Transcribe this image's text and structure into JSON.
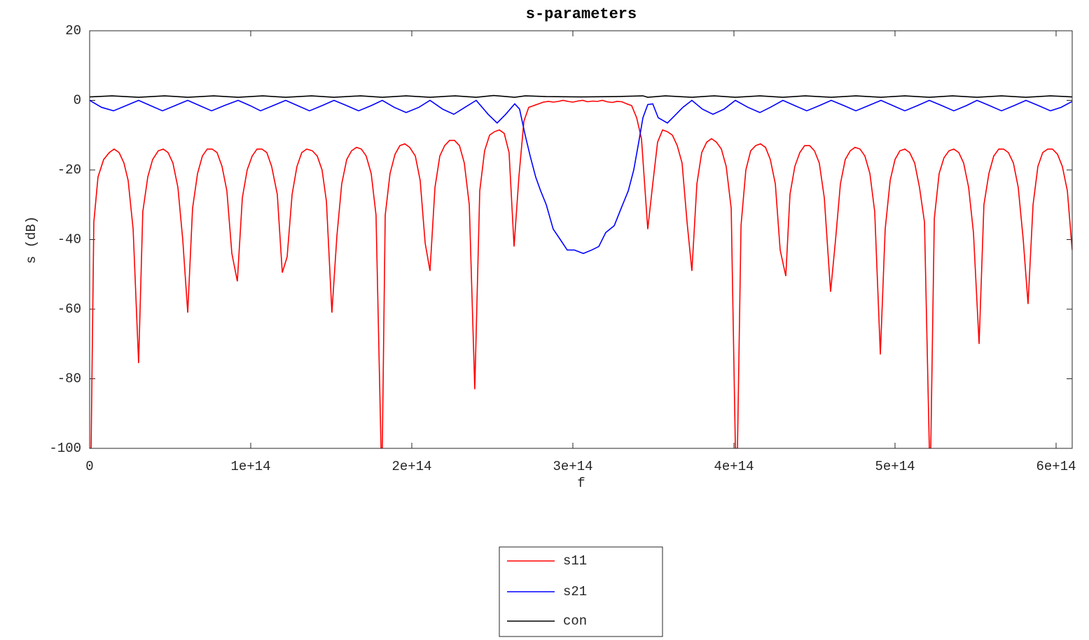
{
  "chart_data": {
    "type": "line",
    "title": "s-parameters",
    "x_label": "f",
    "y_label": "s  (dB)",
    "xlim": [
      0,
      610000000000000.0
    ],
    "ylim": [
      -100,
      20
    ],
    "xticks": [
      0,
      {
        "value": 100000000000000.0,
        "label": "1e+14"
      },
      {
        "value": 200000000000000.0,
        "label": "2e+14"
      },
      {
        "value": 300000000000000.0,
        "label": "3e+14"
      },
      {
        "value": 400000000000000.0,
        "label": "4e+14"
      },
      {
        "value": 500000000000000.0,
        "label": "5e+14"
      },
      {
        "value": 600000000000000.0,
        "label": "6e+14"
      }
    ],
    "yticks": [
      20,
      0,
      -20,
      -40,
      -60,
      -80,
      -100
    ],
    "grid": false,
    "legend": "bottom",
    "series": [
      {
        "name": "s11",
        "color": "#ff0000",
        "x": [
          0,
          900000000000.0,
          2600000000000.0,
          5200000000000.0,
          8700000000000.0,
          12200000000000.0,
          15200000000000.0,
          18300000000000.0,
          21300000000000.0,
          23900000000000.0,
          27000000000000.0,
          30400000000000.0,
          33000000000000.0,
          36100000000000.0,
          39100000000000.0,
          42600000000000.0,
          45700000000000.0,
          48700000000000.0,
          51700000000000.0,
          54800000000000.0,
          57800000000000.0,
          60900000000000.0,
          63900000000000.0,
          67000000000000.0,
          70000000000000.0,
          73000000000000.0,
          76100000000000.0,
          79100000000000.0,
          82200000000000.0,
          85200000000000.0,
          88300000000000.0,
          91700000000000.0,
          94800000000000.0,
          97800000000000.0,
          100900000000000.0,
          103900000000000.0,
          107000000000000.0,
          110000000000000.0,
          113000000000000.0,
          116500000000000.0,
          119600000000000.0,
          122600000000000.0,
          125700000000000.0,
          128700000000000.0,
          131700000000000.0,
          134800000000000.0,
          138300000000000.0,
          141300000000000.0,
          144300000000000.0,
          147000000000000.0,
          150400000000000.0,
          153500000000000.0,
          156500000000000.0,
          159600000000000.0,
          162600000000000.0,
          165700000000000.0,
          168700000000000.0,
          171700000000000.0,
          174800000000000.0,
          177800000000000.0,
          180900000000000.0,
          181700000000000.0,
          183500000000000.0,
          186500000000000.0,
          189600000000000.0,
          192600000000000.0,
          195700000000000.0,
          198700000000000.0,
          202200000000000.0,
          205200000000000.0,
          208300000000000.0,
          211300000000000.0,
          214400000000000.0,
          217400000000000.0,
          220400000000000.0,
          223500000000000.0,
          226500000000000.0,
          229600000000000.0,
          232600000000000.0,
          235700000000000.0,
          239100000000000.0,
          242200000000000.0,
          245200000000000.0,
          248300000000000.0,
          251300000000000.0,
          254400000000000.0,
          257400000000000.0,
          260400000000000.0,
          263500000000000.0,
          266500000000000.0,
          269600000000000.0,
          272600000000000.0,
          275700000000000.0,
          278700000000000.0,
          281700000000000.0,
          284800000000000.0,
          287800000000000.0,
          290900000000000.0,
          293900000000000.0,
          297000000000000.0,
          300000000000000.0,
          303000000000000.0,
          306100000000000.0,
          309100000000000.0,
          312200000000000.0,
          315200000000000.0,
          318300000000000.0,
          321300000000000.0,
          324400000000000.0,
          327400000000000.0,
          330400000000000.0,
          333500000000000.0,
          336500000000000.0,
          339600000000000.0,
          342600000000000.0,
          346500000000000.0,
          349600000000000.0,
          352600000000000.0,
          355700000000000.0,
          358700000000000.0,
          361800000000000.0,
          364800000000000.0,
          367800000000000.0,
          370900000000000.0,
          373900000000000.0,
          377000000000000.0,
          380000000000000.0,
          383100000000000.0,
          386100000000000.0,
          389100000000000.0,
          392200000000000.0,
          395200000000000.0,
          398300000000000.0,
          400900000000000.0,
          402200000000000.0,
          404400000000000.0,
          407400000000000.0,
          410400000000000.0,
          413500000000000.0,
          416500000000000.0,
          419600000000000.0,
          422600000000000.0,
          425700000000000.0,
          428700000000000.0,
          432200000000000.0,
          434800000000000.0,
          437800000000000.0,
          440900000000000.0,
          443900000000000.0,
          447000000000000.0,
          450000000000000.0,
          453000000000000.0,
          456100000000000.0,
          460000000000000.0,
          463100000000000.0,
          466100000000000.0,
          469100000000000.0,
          472200000000000.0,
          475200000000000.0,
          478300000000000.0,
          481300000000000.0,
          484400000000000.0,
          487400000000000.0,
          490900000000000.0,
          493900000000000.0,
          497000000000000.0,
          500000000000000.0,
          503000000000000.0,
          506100000000000.0,
          509100000000000.0,
          512200000000000.0,
          515200000000000.0,
          518300000000000.0,
          521300000000000.0,
          522200000000000.0,
          524400000000000.0,
          527400000000000.0,
          530400000000000.0,
          533500000000000.0,
          536500000000000.0,
          539600000000000.0,
          542600000000000.0,
          545700000000000.0,
          548700000000000.0,
          552200000000000.0,
          555200000000000.0,
          558300000000000.0,
          561300000000000.0,
          564400000000000.0,
          567400000000000.0,
          570400000000000.0,
          573500000000000.0,
          576500000000000.0,
          579600000000000.0,
          582600000000000.0,
          585700000000000.0,
          588700000000000.0,
          591700000000000.0,
          594800000000000.0,
          597800000000000.0,
          600900000000000.0,
          603900000000000.0,
          607000000000000.0,
          610000000000000.0
        ],
        "values": [
          -100,
          -100,
          -35,
          -22,
          -17,
          -15,
          -14,
          -15,
          -18,
          -23,
          -37,
          -75.5,
          -32,
          -22,
          -17,
          -14.5,
          -14,
          -15,
          -18,
          -25,
          -40,
          -61,
          -31,
          -21,
          -16,
          -14,
          -14,
          -15,
          -19,
          -26,
          -44,
          -52,
          -28,
          -20,
          -16,
          -14,
          -14,
          -15,
          -19,
          -27,
          -49.5,
          -45,
          -27,
          -19,
          -15,
          -14,
          -14.5,
          -16,
          -20,
          -29,
          -61,
          -39,
          -24,
          -17,
          -14.5,
          -13.5,
          -14,
          -16,
          -21,
          -33,
          -100,
          -100,
          -33,
          -21,
          -15.5,
          -13,
          -12.5,
          -13.5,
          -16,
          -23,
          -41,
          -49,
          -25,
          -16,
          -13,
          -11.5,
          -11.5,
          -13,
          -18,
          -30,
          -83,
          -26,
          -14.5,
          -10,
          -9,
          -8.5,
          -9.5,
          -15,
          -42,
          -22,
          -6,
          -2,
          -1.5,
          -1,
          -0.5,
          -0.3,
          -0.5,
          -0.3,
          0,
          -0.3,
          -0.5,
          -0.2,
          0,
          -0.4,
          -0.2,
          -0.3,
          0,
          -0.4,
          -0.6,
          -0.3,
          -0.4,
          -1,
          -1.5,
          -5,
          -11,
          -37,
          -24,
          -12,
          -8.5,
          -9,
          -10,
          -13,
          -18,
          -35,
          -49,
          -24,
          -15,
          -12,
          -11,
          -12,
          -14,
          -19,
          -31,
          -100,
          -100,
          -36,
          -20,
          -14.5,
          -13,
          -12.5,
          -13.5,
          -17,
          -24,
          -43,
          -50.5,
          -27,
          -19,
          -15,
          -13,
          -13,
          -14.5,
          -18,
          -28,
          -55,
          -40,
          -24,
          -17,
          -14.5,
          -13.5,
          -14,
          -16,
          -21,
          -32,
          -73,
          -37,
          -23,
          -17,
          -14.5,
          -14,
          -15,
          -18,
          -25,
          -35,
          -100,
          -100,
          -34,
          -21,
          -16.5,
          -14.5,
          -14,
          -15,
          -18,
          -25,
          -38,
          -70,
          -30,
          -21,
          -16,
          -14,
          -14,
          -15,
          -18,
          -25,
          -40,
          -58.5,
          -30,
          -19,
          -15,
          -14,
          -14,
          -15.5,
          -19,
          -26,
          -43
        ]
      },
      {
        "name": "s21",
        "color": "#0000ff",
        "x": [
          0,
          7400000000000.0,
          14800000000000.0,
          22600000000000.0,
          30400000000000.0,
          37800000000000.0,
          45200000000000.0,
          53000000000000.0,
          60900000000000.0,
          68300000000000.0,
          75700000000000.0,
          83500000000000.0,
          92200000000000.0,
          99600000000000.0,
          106100000000000.0,
          113900000000000.0,
          121700000000000.0,
          129100000000000.0,
          136500000000000.0,
          144300000000000.0,
          151700000000000.0,
          159600000000000.0,
          167000000000000.0,
          174800000000000.0,
          181700000000000.0,
          189100000000000.0,
          196500000000000.0,
          204400000000000.0,
          211300000000000.0,
          219100000000000.0,
          226100000000000.0,
          233000000000000.0,
          240000000000000.0,
          247400000000000.0,
          253000000000000.0,
          258300000000000.0,
          263900000000000.0,
          266900000000000.0,
          270400000000000.0,
          273500000000000.0,
          276900000000000.0,
          280000000000000.0,
          283500000000000.0,
          287800000000000.0,
          292200000000000.0,
          296500000000000.0,
          300900000000000.0,
          306500000000000.0,
          311700000000000.0,
          316100000000000.0,
          320400000000000.0,
          325700000000000.0,
          330000000000000.0,
          334400000000000.0,
          337800000000000.0,
          340900000000000.0,
          343500000000000.0,
          346500000000000.0,
          349600000000000.0,
          353000000000000.0,
          358700000000000.0,
          363000000000000.0,
          368300000000000.0,
          373900000000000.0,
          380400000000000.0,
          387000000000000.0,
          393900000000000.0,
          400900000000000.0,
          408700000000000.0,
          416100000000000.0,
          422600000000000.0,
          430400000000000.0,
          437800000000000.0,
          445200000000000.0,
          453000000000000.0,
          460400000000000.0,
          468300000000000.0,
          475700000000000.0,
          483500000000000.0,
          491300000000000.0,
          498700000000000.0,
          506100000000000.0,
          513900000000000.0,
          521300000000000.0,
          529100000000000.0,
          536500000000000.0,
          544300000000000.0,
          550900000000000.0,
          558700000000000.0,
          566100000000000.0,
          573900000000000.0,
          581300000000000.0,
          589100000000000.0,
          596500000000000.0,
          603100000000000.0,
          610000000000000.0
        ],
        "values": [
          0,
          -2,
          -3,
          -1.5,
          0,
          -1.5,
          -3,
          -1.5,
          0,
          -1.5,
          -3,
          -1.5,
          0,
          -1.5,
          -3,
          -1.5,
          0,
          -1.5,
          -3,
          -1.5,
          0,
          -1.5,
          -3,
          -1.5,
          0,
          -2,
          -3.5,
          -2,
          0,
          -2.5,
          -4,
          -2,
          0,
          -4,
          -6.5,
          -4,
          -1,
          -2.5,
          -10,
          -16,
          -22,
          -26,
          -30,
          -37,
          -40,
          -43,
          -43,
          -44,
          -43,
          -42,
          -38,
          -36,
          -31,
          -26,
          -20,
          -12,
          -5,
          -1.2,
          -1,
          -5,
          -6.5,
          -4.5,
          -2,
          0,
          -2.5,
          -4,
          -2.5,
          0,
          -2,
          -3.5,
          -2,
          0,
          -1.5,
          -3,
          -1.5,
          0,
          -1.5,
          -3,
          -1.5,
          0,
          -1.5,
          -3,
          -1.5,
          0,
          -1.5,
          -3,
          -1.5,
          0,
          -1.5,
          -3,
          -1.5,
          0,
          -1.5,
          -3,
          -2,
          -0.3
        ]
      },
      {
        "name": "con",
        "color": "#000000",
        "x": [
          0,
          13900000000000.0,
          30400000000000.0,
          46500000000000.0,
          60900000000000.0,
          77000000000000.0,
          92200000000000.0,
          107400000000000.0,
          121700000000000.0,
          137800000000000.0,
          151700000000000.0,
          168300000000000.0,
          181700000000000.0,
          196500000000000.0,
          211300000000000.0,
          227000000000000.0,
          240000000000000.0,
          250900000000000.0,
          263900000000000.0,
          270400000000000.0,
          283500000000000.0,
          305200000000000.0,
          327000000000000.0,
          343500000000000.0,
          346500000000000.0,
          357400000000000.0,
          373900000000000.0,
          387800000000000.0,
          400900000000000.0,
          416100000000000.0,
          430400000000000.0,
          444300000000000.0,
          460400000000000.0,
          475700000000000.0,
          491300000000000.0,
          506100000000000.0,
          521300000000000.0,
          535700000000000.0,
          550900000000000.0,
          566100000000000.0,
          581300000000000.0,
          596500000000000.0,
          610000000000000.0
        ],
        "values": [
          1,
          1.3,
          0.9,
          1.3,
          0.9,
          1.3,
          0.9,
          1.3,
          0.9,
          1.3,
          0.9,
          1.3,
          0.9,
          1.3,
          0.9,
          1.3,
          0.9,
          1.4,
          0.9,
          1.3,
          1.1,
          1.0,
          1.1,
          1.3,
          0.9,
          1.3,
          0.9,
          1.3,
          0.9,
          1.3,
          0.9,
          1.3,
          0.9,
          1.3,
          0.9,
          1.3,
          0.9,
          1.3,
          0.9,
          1.3,
          0.9,
          1.3,
          1.0
        ]
      }
    ]
  }
}
